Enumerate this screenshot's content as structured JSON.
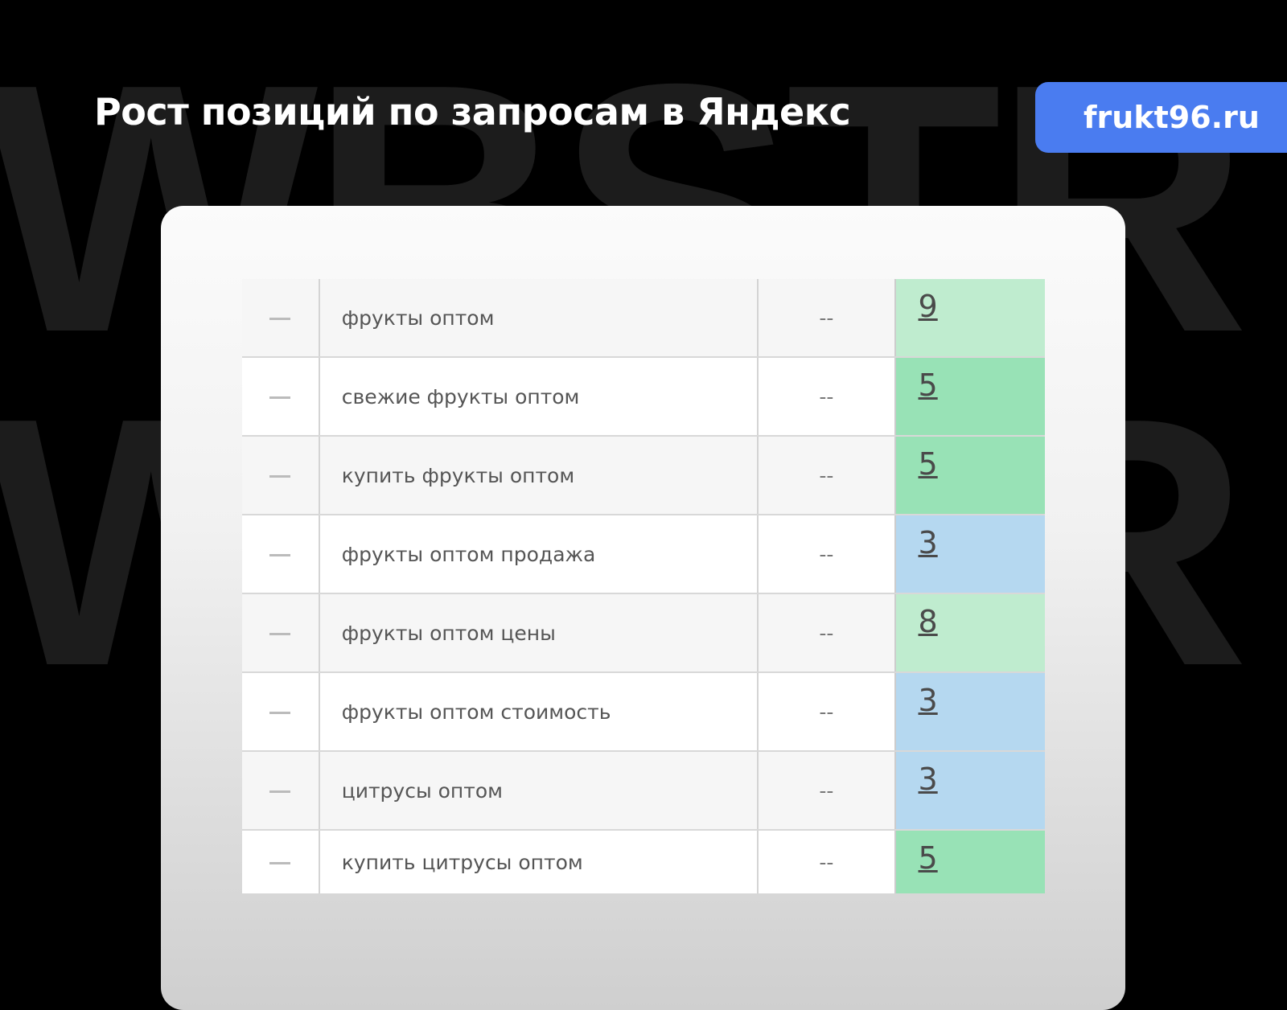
{
  "watermark": "WBSTR",
  "title": "Рост позиций по запросам в Яндекс",
  "badge": "frukt96.ru",
  "colors": {
    "badge": "#4a7cf0",
    "light_green": "#bfeccf",
    "green": "#98e2b6",
    "blue": "#b5d8f0"
  },
  "rows": [
    {
      "query": "фрукты оптом",
      "prev": "--",
      "pos": "9",
      "color": "#bfeccf"
    },
    {
      "query": "свежие фрукты оптом",
      "prev": "--",
      "pos": "5",
      "color": "#98e2b6"
    },
    {
      "query": "купить фрукты оптом",
      "prev": "--",
      "pos": "5",
      "color": "#98e2b6"
    },
    {
      "query": "фрукты оптом продажа",
      "prev": "--",
      "pos": "3",
      "color": "#b5d8f0"
    },
    {
      "query": "фрукты оптом цены",
      "prev": "--",
      "pos": "8",
      "color": "#bfeccf"
    },
    {
      "query": "фрукты оптом стоимость",
      "prev": "--",
      "pos": "3",
      "color": "#b5d8f0"
    },
    {
      "query": "цитрусы оптом",
      "prev": "--",
      "pos": "3",
      "color": "#b5d8f0"
    },
    {
      "query": "купить цитрусы оптом",
      "prev": "--",
      "pos": "5",
      "color": "#98e2b6"
    }
  ]
}
